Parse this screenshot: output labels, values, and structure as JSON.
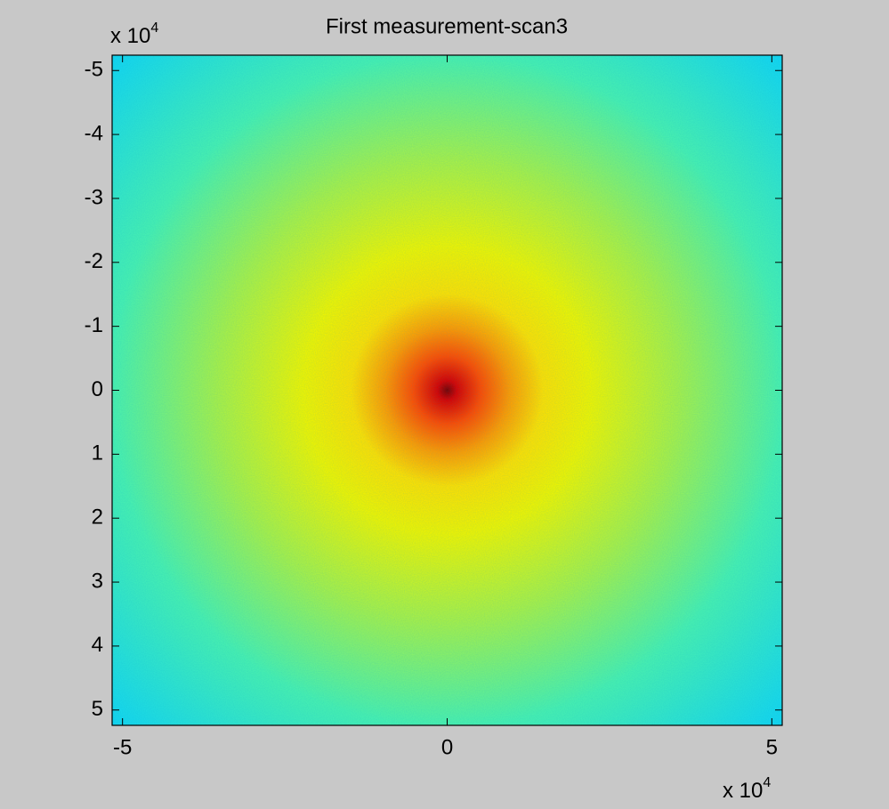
{
  "chart_data": {
    "type": "heatmap",
    "title": "First measurement-scan3",
    "colormap": "jet",
    "xlim": [
      -5.16,
      5.16
    ],
    "xticks": [
      -5,
      0,
      5
    ],
    "ylim": [
      -5.24,
      5.24
    ],
    "yticks": [
      -5,
      -4,
      -3,
      -2,
      -1,
      0,
      1,
      2,
      3,
      4,
      5
    ],
    "y_direction": "reverse",
    "x_multiplier": {
      "base": "x 10",
      "exponent": "4"
    },
    "y_multiplier": {
      "base": "x 10",
      "exponent": "4"
    }
  }
}
